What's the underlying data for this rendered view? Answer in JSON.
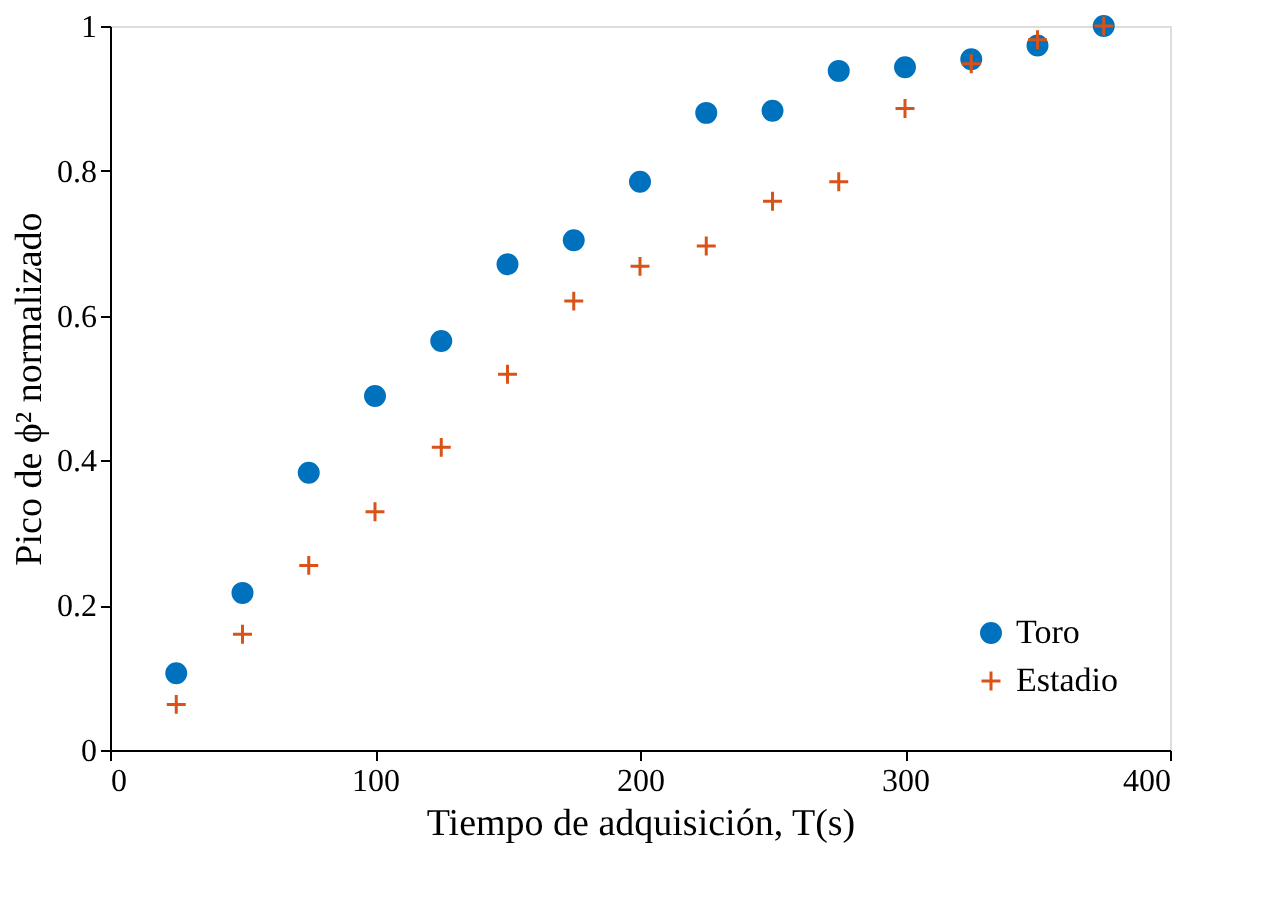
{
  "chart_data": {
    "type": "scatter",
    "xlabel": "Tiempo de adquisición, T(s)",
    "ylabel": "Pico de ϕ² normalizado",
    "x": [
      25,
      50,
      75,
      100,
      125,
      150,
      175,
      200,
      225,
      250,
      275,
      300,
      325,
      350,
      375
    ],
    "series": [
      {
        "name": "Toro",
        "color": "#0072bd",
        "marker": "circle",
        "values": [
          0.106,
          0.217,
          0.383,
          0.489,
          0.565,
          0.671,
          0.704,
          0.785,
          0.88,
          0.883,
          0.938,
          0.943,
          0.954,
          0.973,
          1.0
        ]
      },
      {
        "name": "Estadio",
        "color": "#d95319",
        "marker": "cross",
        "values": [
          0.063,
          0.16,
          0.255,
          0.329,
          0.418,
          0.519,
          0.62,
          0.668,
          0.696,
          0.758,
          0.785,
          0.886,
          0.948,
          0.981,
          1.0
        ]
      }
    ],
    "xlim": [
      0,
      400
    ],
    "xticks": [
      0,
      100,
      200,
      300,
      400
    ],
    "ylim": [
      0,
      1
    ],
    "yticks": [
      0,
      0.2,
      0.4,
      0.6,
      0.8,
      1
    ],
    "grid": false,
    "legend": "bottom right"
  }
}
